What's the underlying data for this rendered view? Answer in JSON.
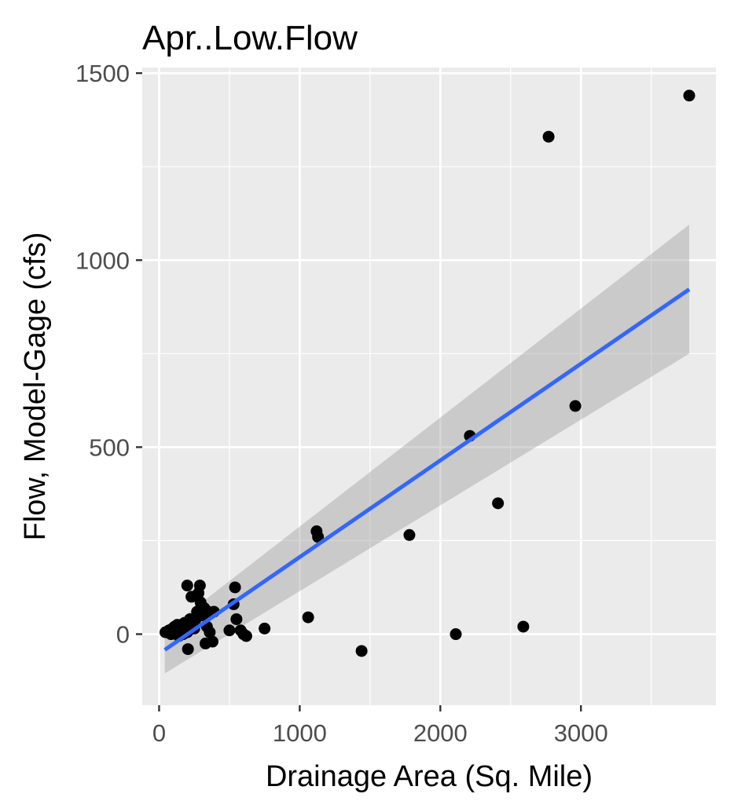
{
  "chart_data": {
    "type": "scatter",
    "title": "Apr..Low.Flow",
    "xlabel": "Drainage Area (Sq. Mile)",
    "ylabel": "Flow, Model-Gage (cfs)",
    "xlim": [
      -120,
      3960
    ],
    "ylim": [
      -190,
      1515
    ],
    "x_ticks": [
      0,
      1000,
      2000,
      3000
    ],
    "x_tick_labels": [
      "0",
      "1000",
      "2000",
      "3000"
    ],
    "x_minor": [
      500,
      1500,
      2500,
      3500
    ],
    "y_ticks": [
      0,
      500,
      1000,
      1500
    ],
    "y_tick_labels": [
      "0",
      "500",
      "1000",
      "1500"
    ],
    "y_minor": [
      -250,
      250,
      750,
      1250
    ],
    "grid": true,
    "points": [
      [
        45,
        5
      ],
      [
        70,
        10
      ],
      [
        85,
        0
      ],
      [
        95,
        15
      ],
      [
        110,
        20
      ],
      [
        120,
        5
      ],
      [
        130,
        25
      ],
      [
        140,
        -5
      ],
      [
        150,
        10
      ],
      [
        160,
        15
      ],
      [
        170,
        0
      ],
      [
        180,
        30
      ],
      [
        190,
        20
      ],
      [
        200,
        5
      ],
      [
        200,
        130
      ],
      [
        205,
        -40
      ],
      [
        210,
        10
      ],
      [
        220,
        40
      ],
      [
        230,
        100
      ],
      [
        240,
        25
      ],
      [
        250,
        15
      ],
      [
        260,
        40
      ],
      [
        270,
        60
      ],
      [
        280,
        110
      ],
      [
        290,
        130
      ],
      [
        295,
        85
      ],
      [
        300,
        75
      ],
      [
        310,
        50
      ],
      [
        320,
        70
      ],
      [
        330,
        -25
      ],
      [
        340,
        20
      ],
      [
        350,
        60
      ],
      [
        360,
        5
      ],
      [
        380,
        -20
      ],
      [
        390,
        60
      ],
      [
        500,
        10
      ],
      [
        530,
        80
      ],
      [
        540,
        125
      ],
      [
        550,
        40
      ],
      [
        580,
        10
      ],
      [
        600,
        0
      ],
      [
        620,
        -5
      ],
      [
        750,
        15
      ],
      [
        1060,
        45
      ],
      [
        1120,
        275
      ],
      [
        1130,
        260
      ],
      [
        1440,
        -45
      ],
      [
        1780,
        265
      ],
      [
        2110,
        0
      ],
      [
        2210,
        530
      ],
      [
        2410,
        350
      ],
      [
        2590,
        20
      ],
      [
        2770,
        1330
      ],
      [
        2960,
        610
      ],
      [
        3770,
        1440
      ]
    ],
    "fit": {
      "x": [
        40,
        3770
      ],
      "y": [
        -42,
        922
      ]
    },
    "confidence_band": {
      "x": [
        40,
        3770
      ],
      "upper": [
        8,
        1095
      ],
      "lower": [
        -105,
        750
      ]
    },
    "colors": {
      "panel": "#EBEBEB",
      "grid": "#FFFFFF",
      "points": "#000000",
      "fit_line": "#3366FF",
      "band": "#999999"
    }
  }
}
